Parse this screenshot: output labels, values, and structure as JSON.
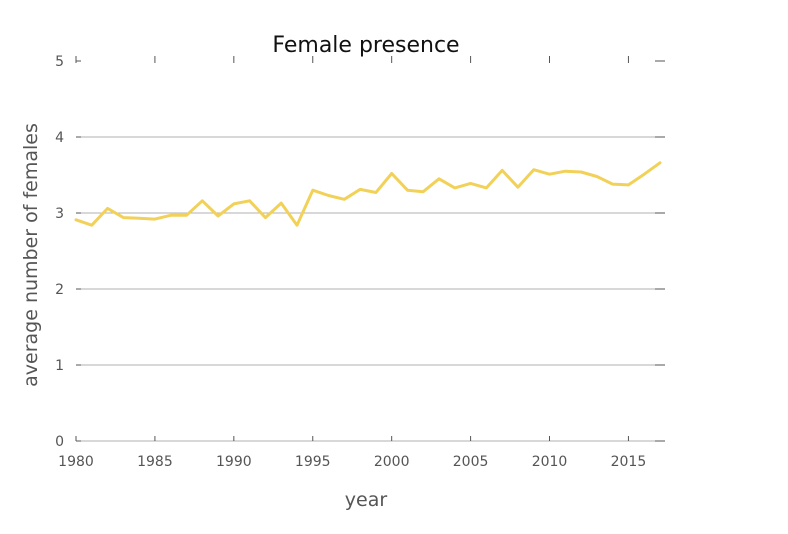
{
  "chart_data": {
    "type": "line",
    "title": "Female presence",
    "xlabel": "year",
    "ylabel": "average number of females",
    "xlim": [
      1980,
      2017
    ],
    "ylim": [
      0,
      5
    ],
    "xticks": [
      1980,
      1985,
      1990,
      1995,
      2000,
      2005,
      2010,
      2015
    ],
    "yticks": [
      0,
      1,
      2,
      3,
      4,
      5
    ],
    "grid": "horizontal",
    "line_color": "#f2d158",
    "x": [
      1980,
      1981,
      1982,
      1983,
      1984,
      1985,
      1986,
      1987,
      1988,
      1989,
      1990,
      1991,
      1992,
      1993,
      1994,
      1995,
      1996,
      1997,
      1998,
      1999,
      2000,
      2001,
      2002,
      2003,
      2004,
      2005,
      2006,
      2007,
      2008,
      2009,
      2010,
      2011,
      2012,
      2013,
      2014,
      2015,
      2016,
      2017
    ],
    "values": [
      2.91,
      2.84,
      3.06,
      2.94,
      2.93,
      2.92,
      2.97,
      2.97,
      3.16,
      2.96,
      3.12,
      3.16,
      2.94,
      3.13,
      2.84,
      3.3,
      3.23,
      3.18,
      3.31,
      3.27,
      3.52,
      3.3,
      3.28,
      3.45,
      3.33,
      3.39,
      3.33,
      3.56,
      3.34,
      3.57,
      3.51,
      3.55,
      3.54,
      3.48,
      3.38,
      3.37,
      3.51,
      3.66
    ]
  }
}
